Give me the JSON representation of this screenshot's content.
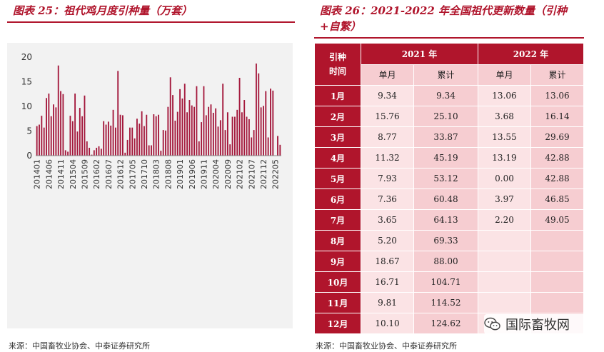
{
  "left": {
    "title": "图表 25：祖代鸡月度引种量（万套）",
    "source": "来源：中国畜牧业协会、中泰证券研究所"
  },
  "right": {
    "title_line1": "图表 26：2021-2022 年全国祖代更新数量（引种",
    "title_line2": "+自繁）",
    "source": "来源：中国畜牧业协会、中泰证券研究所",
    "header": {
      "row_label_top": "引种",
      "row_label_bottom": "时间",
      "year_2021": "2021 年",
      "year_2022": "2022 年",
      "monthly": "单月",
      "cumulative": "累计"
    },
    "rows": [
      {
        "month": "1月",
        "m2021": "9.34",
        "c2021": "9.34",
        "m2022": "13.06",
        "c2022": "13.06"
      },
      {
        "month": "2月",
        "m2021": "15.76",
        "c2021": "25.10",
        "m2022": "3.68",
        "c2022": "16.14"
      },
      {
        "month": "3月",
        "m2021": "8.77",
        "c2021": "33.87",
        "m2022": "13.55",
        "c2022": "29.69"
      },
      {
        "month": "4月",
        "m2021": "11.32",
        "c2021": "45.19",
        "m2022": "13.19",
        "c2022": "42.88"
      },
      {
        "month": "5月",
        "m2021": "7.93",
        "c2021": "53.12",
        "m2022": "0.00",
        "c2022": "42.88"
      },
      {
        "month": "6月",
        "m2021": "7.36",
        "c2021": "60.48",
        "m2022": "3.97",
        "c2022": "46.85"
      },
      {
        "month": "7月",
        "m2021": "3.65",
        "c2021": "64.13",
        "m2022": "2.20",
        "c2022": "49.05"
      },
      {
        "month": "8月",
        "m2021": "5.20",
        "c2021": "69.33",
        "m2022": "",
        "c2022": ""
      },
      {
        "month": "9月",
        "m2021": "18.67",
        "c2021": "88.00",
        "m2022": "",
        "c2022": ""
      },
      {
        "month": "10月",
        "m2021": "16.71",
        "c2021": "104.71",
        "m2022": "",
        "c2022": ""
      },
      {
        "month": "11月",
        "m2021": "9.81",
        "c2021": "114.52",
        "m2022": "",
        "c2022": ""
      },
      {
        "month": "12月",
        "m2021": "10.10",
        "c2021": "124.62",
        "m2022": "",
        "c2022": ""
      }
    ]
  },
  "watermark": {
    "text": "国际畜牧网",
    "icon": "wechat-icon"
  },
  "colors": {
    "accent": "#b0152c",
    "bar": "#a3163a",
    "cell_light": "#fbe3e5",
    "cell_mid": "#f6cdd1",
    "plot_bg": "#f2f2f2"
  },
  "chart_data": {
    "type": "bar",
    "title": "图表 25：祖代鸡月度引种量（万套）",
    "xlabel": "",
    "ylabel": "",
    "ylim": [
      0,
      20
    ],
    "yticks": [
      0,
      5,
      10,
      15,
      20
    ],
    "grid": false,
    "tick_labels": [
      "201401",
      "201406",
      "201411",
      "201504",
      "201509",
      "201602",
      "201607",
      "201612",
      "201705",
      "201710",
      "201803",
      "201808",
      "201901",
      "201906",
      "201911",
      "202004",
      "202009",
      "202102",
      "202107",
      "202112",
      "202205"
    ],
    "categories": [
      "201401",
      "201402",
      "201403",
      "201404",
      "201405",
      "201406",
      "201407",
      "201408",
      "201409",
      "201410",
      "201411",
      "201412",
      "201501",
      "201502",
      "201503",
      "201504",
      "201505",
      "201506",
      "201507",
      "201508",
      "201509",
      "201510",
      "201511",
      "201512",
      "201601",
      "201602",
      "201603",
      "201604",
      "201605",
      "201606",
      "201607",
      "201608",
      "201609",
      "201610",
      "201611",
      "201612",
      "201701",
      "201702",
      "201703",
      "201704",
      "201705",
      "201706",
      "201707",
      "201708",
      "201709",
      "201710",
      "201711",
      "201712",
      "201801",
      "201802",
      "201803",
      "201804",
      "201805",
      "201806",
      "201807",
      "201808",
      "201809",
      "201810",
      "201811",
      "201812",
      "201901",
      "201902",
      "201903",
      "201904",
      "201905",
      "201906",
      "201907",
      "201908",
      "201909",
      "201910",
      "201911",
      "201912",
      "202001",
      "202002",
      "202003",
      "202004",
      "202005",
      "202006",
      "202007",
      "202008",
      "202009",
      "202010",
      "202011",
      "202012",
      "202101",
      "202102",
      "202103",
      "202104",
      "202105",
      "202106",
      "202107",
      "202108",
      "202109",
      "202110",
      "202111",
      "202112",
      "202201",
      "202202",
      "202203",
      "202204",
      "202205",
      "202206",
      "202207"
    ],
    "values": [
      6.0,
      6.3,
      8.1,
      5.7,
      11.7,
      12.6,
      8.0,
      10.4,
      9.8,
      18.3,
      13.1,
      12.5,
      1.1,
      0.8,
      8.1,
      7.0,
      12.6,
      4.9,
      9.7,
      8.0,
      12.2,
      2.9,
      1.6,
      0.2,
      1.1,
      1.6,
      1.9,
      1.4,
      7.0,
      6.3,
      6.9,
      6.1,
      9.3,
      5.7,
      17.2,
      8.3,
      8.2,
      0.6,
      3.2,
      5.7,
      5.7,
      3.5,
      7.5,
      6.5,
      9.0,
      6.0,
      8.3,
      2.1,
      2.1,
      8.4,
      8.0,
      8.3,
      1.0,
      5.2,
      5.1,
      9.9,
      15.9,
      12.3,
      7.1,
      8.9,
      13.5,
      11.6,
      14.6,
      8.8,
      11.3,
      10.2,
      9.9,
      14.1,
      2.9,
      6.8,
      14.1,
      8.2,
      9.9,
      10.4,
      8.7,
      9.6,
      5.9,
      7.2,
      14.6,
      5.2,
      8.8,
      2.3,
      7.9,
      7.9,
      9.3,
      15.8,
      8.8,
      11.3,
      7.9,
      7.4,
      3.7,
      5.2,
      18.7,
      16.7,
      9.8,
      10.1,
      13.1,
      3.7,
      13.6,
      13.2,
      0.0,
      4.0,
      2.2
    ]
  }
}
